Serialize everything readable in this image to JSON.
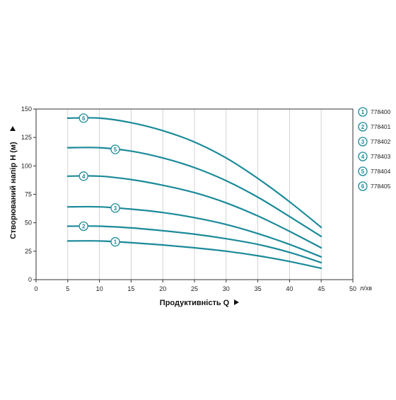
{
  "chart_data": {
    "type": "line",
    "xlabel": "Продуктивність  Q",
    "ylabel": "Створюваний напір H (м)",
    "x_unit": "л/хв",
    "xlim": [
      0,
      50
    ],
    "ylim": [
      0,
      150
    ],
    "xticks": [
      0,
      5,
      10,
      15,
      20,
      25,
      30,
      35,
      40,
      45,
      50
    ],
    "yticks": [
      0,
      25,
      50,
      75,
      100,
      125,
      150
    ],
    "grid": "vertical",
    "legend_position": "right",
    "line_color": "#1b8a9a",
    "series": [
      {
        "name": "778400",
        "marker": "1",
        "marker_x": 12.5,
        "x": [
          5,
          10,
          15,
          20,
          25,
          30,
          35,
          40,
          45
        ],
        "y": [
          34,
          34,
          32.5,
          30.5,
          28,
          25,
          21,
          16,
          10
        ]
      },
      {
        "name": "778401",
        "marker": "2",
        "marker_x": 7.5,
        "x": [
          5,
          10,
          15,
          20,
          25,
          30,
          35,
          40,
          45
        ],
        "y": [
          47,
          47,
          45.5,
          43,
          40,
          36,
          31,
          24,
          15
        ]
      },
      {
        "name": "778402",
        "marker": "3",
        "marker_x": 12.5,
        "x": [
          5,
          10,
          15,
          20,
          25,
          30,
          35,
          40,
          45
        ],
        "y": [
          64,
          64,
          62,
          59,
          54.5,
          48.5,
          40.5,
          31,
          20
        ]
      },
      {
        "name": "778403",
        "marker": "4",
        "marker_x": 7.5,
        "x": [
          5,
          10,
          15,
          20,
          25,
          30,
          35,
          40,
          45
        ],
        "y": [
          91,
          91,
          88,
          83,
          76.5,
          67.5,
          56,
          42.5,
          28
        ]
      },
      {
        "name": "778404",
        "marker": "5",
        "marker_x": 12.5,
        "x": [
          5,
          10,
          15,
          20,
          25,
          30,
          35,
          40,
          45
        ],
        "y": [
          116,
          116,
          113,
          107,
          98.5,
          87,
          72.5,
          55.5,
          38
        ]
      },
      {
        "name": "778405",
        "marker": "6",
        "marker_x": 7.5,
        "x": [
          5,
          10,
          15,
          20,
          25,
          30,
          35,
          40,
          45
        ],
        "y": [
          142,
          142,
          138,
          131,
          121,
          107,
          89,
          68.5,
          46
        ]
      }
    ]
  }
}
